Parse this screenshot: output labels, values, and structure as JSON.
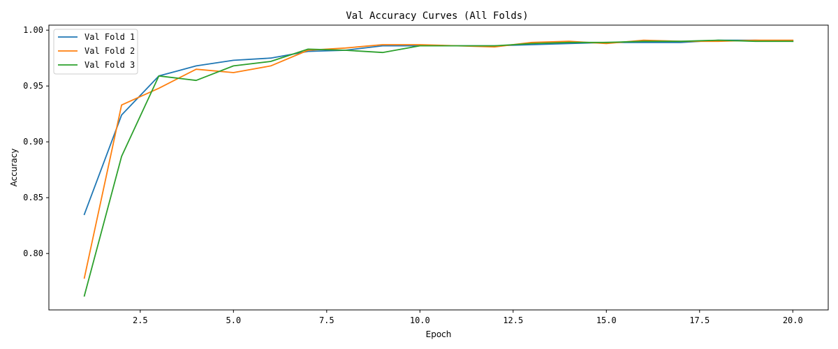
{
  "chart_data": {
    "type": "line",
    "title": "Val Accuracy Curves (All Folds)",
    "xlabel": "Epoch",
    "ylabel": "Accuracy",
    "xlim": [
      0.05,
      20.95
    ],
    "ylim": [
      0.7495,
      1.0045
    ],
    "xticks": [
      2.5,
      5.0,
      7.5,
      10.0,
      12.5,
      15.0,
      17.5,
      20.0
    ],
    "xtick_labels": [
      "2.5",
      "5.0",
      "7.5",
      "10.0",
      "12.5",
      "15.0",
      "17.5",
      "20.0"
    ],
    "yticks": [
      0.8,
      0.85,
      0.9,
      0.95,
      1.0
    ],
    "ytick_labels": [
      "0.80",
      "0.85",
      "0.90",
      "0.95",
      "1.00"
    ],
    "grid": false,
    "legend_position": "top-left",
    "x": [
      1,
      2,
      3,
      4,
      5,
      6,
      7,
      8,
      9,
      10,
      11,
      12,
      13,
      14,
      15,
      16,
      17,
      18,
      19,
      20
    ],
    "series": [
      {
        "name": "Val Fold 1",
        "color": "#1f77b4",
        "values": [
          0.835,
          0.924,
          0.959,
          0.968,
          0.973,
          0.975,
          0.981,
          0.982,
          0.986,
          0.986,
          0.986,
          0.986,
          0.987,
          0.988,
          0.989,
          0.989,
          0.989,
          0.991,
          0.991,
          0.99
        ]
      },
      {
        "name": "Val Fold 2",
        "color": "#ff7f0e",
        "values": [
          0.778,
          0.933,
          0.948,
          0.965,
          0.962,
          0.968,
          0.982,
          0.984,
          0.987,
          0.987,
          0.986,
          0.985,
          0.989,
          0.99,
          0.988,
          0.991,
          0.99,
          0.99,
          0.991,
          0.991
        ]
      },
      {
        "name": "Val Fold 3",
        "color": "#2ca02c",
        "values": [
          0.762,
          0.887,
          0.959,
          0.955,
          0.968,
          0.972,
          0.983,
          0.982,
          0.98,
          0.986,
          0.986,
          0.986,
          0.988,
          0.989,
          0.989,
          0.99,
          0.99,
          0.991,
          0.99,
          0.99
        ]
      }
    ]
  }
}
